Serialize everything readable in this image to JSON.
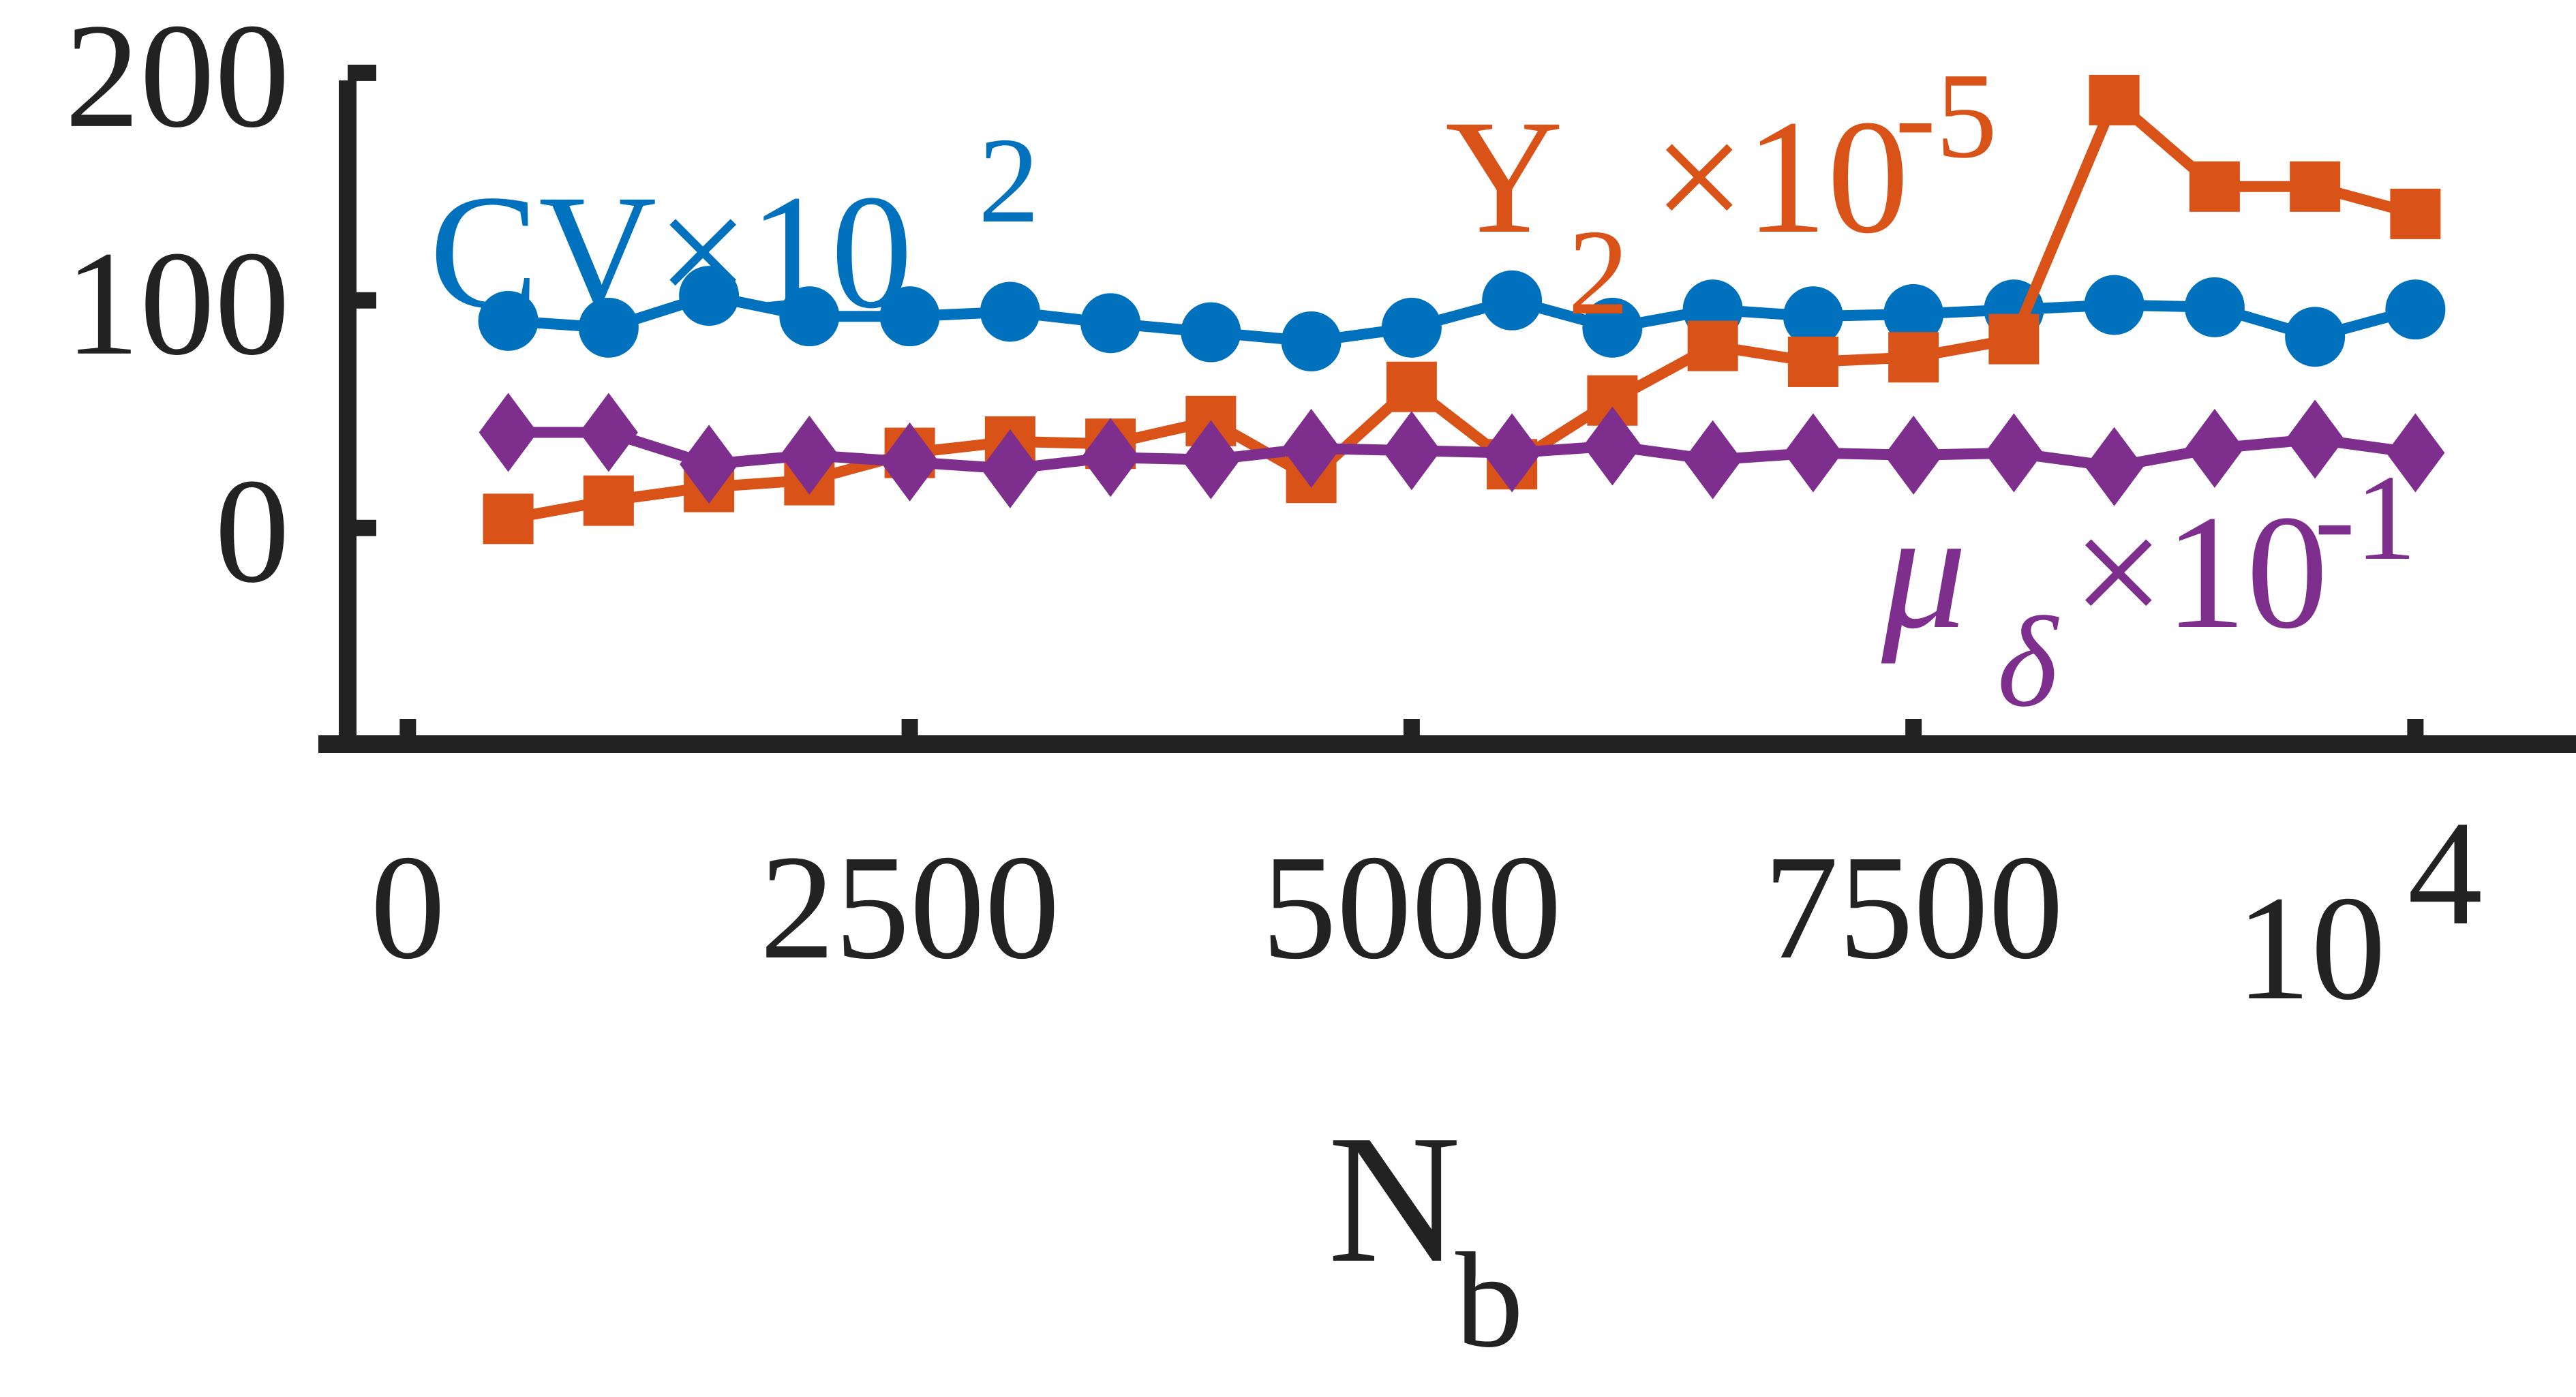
{
  "chart_data": {
    "type": "line",
    "xlabel": "N",
    "xlabel_subscript": "b",
    "x_multiplier_label": "10",
    "x_multiplier_exponent": "4",
    "xlim": [
      -300,
      10800
    ],
    "ylim": [
      -95,
      232
    ],
    "xticks": [
      0,
      2500,
      5000,
      7500,
      10000
    ],
    "xtick_labels": [
      "0",
      "2500",
      "5000",
      "7500",
      ""
    ],
    "yticks": [
      0,
      100,
      200
    ],
    "ytick_labels": [
      "0",
      "100",
      "200"
    ],
    "grid": false,
    "legend": "none",
    "x": [
      500,
      1000,
      1500,
      2000,
      2500,
      3000,
      3500,
      4000,
      4500,
      5000,
      5500,
      6000,
      6500,
      7000,
      7500,
      8000,
      8500,
      9000,
      9500,
      10000
    ],
    "series": [
      {
        "name": "CV×10",
        "label_base": "CV×10",
        "label_exponent": "2",
        "color": "#0072BD",
        "marker": "circle",
        "values": [
          91,
          88,
          102,
          93,
          93,
          95,
          90,
          86,
          82,
          88,
          100,
          88,
          96,
          93,
          94,
          96,
          98,
          97,
          84,
          96
        ]
      },
      {
        "name": "Y2×10",
        "label_base": "Y",
        "label_subscript": "2",
        "label_suffix": "×10",
        "label_exponent": "-5",
        "color": "#D95319",
        "marker": "square",
        "values": [
          4,
          12,
          18,
          21,
          33,
          38,
          37,
          47,
          22,
          62,
          28,
          56,
          80,
          73,
          75,
          83,
          188,
          150,
          150,
          138
        ]
      },
      {
        "name": "μδ×10",
        "label_base": "μ",
        "label_subscript": "δ",
        "label_suffix": "×10",
        "label_exponent": "-1",
        "color": "#7E2F8E",
        "marker": "diamond",
        "values": [
          42,
          42,
          28,
          32,
          29,
          26,
          31,
          30,
          35,
          34,
          33,
          36,
          30,
          33,
          32,
          33,
          27,
          35,
          39,
          33
        ]
      }
    ]
  }
}
